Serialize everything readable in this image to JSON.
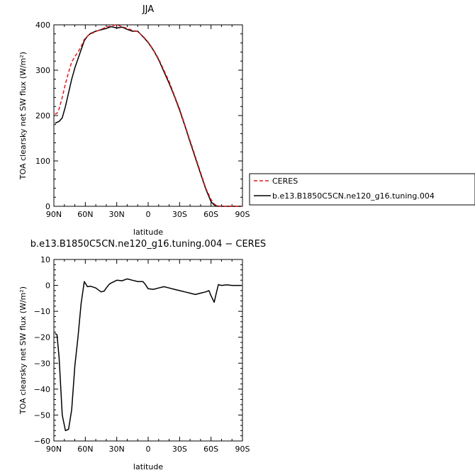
{
  "chart_data": [
    {
      "type": "line",
      "title": "JJA",
      "xlabel": "latitude",
      "ylabel": "TOA clearsky net SW flux (W/m²)",
      "xlim": [
        90,
        -90
      ],
      "ylim": [
        0,
        400
      ],
      "x_ticks": [
        90,
        60,
        30,
        0,
        -30,
        -60,
        -90
      ],
      "x_tick_labels": [
        "90N",
        "60N",
        "30N",
        "0",
        "30S",
        "60S",
        "90S"
      ],
      "y_ticks": [
        0,
        100,
        200,
        300,
        400
      ],
      "y_tick_labels": [
        "0",
        "100",
        "200",
        "300",
        "400"
      ],
      "legend_position": "right",
      "series": [
        {
          "name": "CERES",
          "color": "#e0191b",
          "dash": "dashed",
          "x": [
            89,
            87,
            85,
            82,
            79,
            76,
            73,
            70,
            67,
            64,
            61,
            58,
            55,
            50,
            45,
            40,
            35,
            30,
            25,
            20,
            15,
            10,
            5,
            0,
            -5,
            -10,
            -15,
            -20,
            -25,
            -30,
            -35,
            -40,
            -45,
            -50,
            -55,
            -60,
            -63,
            -65,
            -67,
            -70,
            -75,
            -80,
            -85,
            -89
          ],
          "values": [
            203,
            205,
            215,
            240,
            270,
            295,
            318,
            330,
            340,
            352,
            368,
            375,
            380,
            385,
            390,
            395,
            398,
            400,
            396,
            392,
            388,
            385,
            375,
            362,
            345,
            325,
            300,
            275,
            245,
            215,
            180,
            145,
            110,
            75,
            40,
            15,
            5,
            2,
            1,
            0,
            0,
            0,
            0,
            0
          ]
        },
        {
          "name": "b.e13.B1850C5CN.ne120_g16.tuning.004",
          "color": "#000000",
          "dash": "solid",
          "x": [
            89,
            87,
            85,
            82,
            79,
            76,
            73,
            70,
            67,
            64,
            61,
            58,
            55,
            50,
            45,
            40,
            35,
            30,
            25,
            20,
            15,
            10,
            5,
            0,
            -5,
            -10,
            -15,
            -20,
            -25,
            -30,
            -35,
            -40,
            -45,
            -50,
            -55,
            -60,
            -63,
            -65,
            -67,
            -70,
            -75,
            -80,
            -85,
            -89
          ],
          "values": [
            183,
            185,
            187,
            195,
            220,
            250,
            280,
            305,
            325,
            345,
            365,
            375,
            381,
            386,
            389,
            392,
            396,
            393,
            395,
            390,
            386,
            386,
            374,
            361,
            344,
            323,
            297,
            271,
            243,
            212,
            178,
            142,
            107,
            72,
            38,
            10,
            3,
            1,
            0,
            0,
            0,
            0,
            0,
            0
          ]
        }
      ]
    },
    {
      "type": "line",
      "title": "b.e13.B1850C5CN.ne120_g16.tuning.004 − CERES",
      "xlabel": "latitude",
      "ylabel": "TOA clearsky net SW flux (W/m²)",
      "xlim": [
        90,
        -90
      ],
      "ylim": [
        -60,
        10
      ],
      "x_ticks": [
        90,
        60,
        30,
        0,
        -30,
        -60,
        -90
      ],
      "x_tick_labels": [
        "90N",
        "60N",
        "30N",
        "0",
        "30S",
        "60S",
        "90S"
      ],
      "y_ticks": [
        -60,
        -50,
        -40,
        -30,
        -20,
        -10,
        0,
        10
      ],
      "y_tick_labels": [
        "−60",
        "−50",
        "−40",
        "−30",
        "−20",
        "−10",
        "0",
        "10"
      ],
      "series": [
        {
          "name": "",
          "color": "#000000",
          "dash": "solid",
          "x": [
            89,
            87,
            85,
            82,
            79,
            76,
            73,
            70,
            67,
            64,
            61,
            58,
            55,
            50,
            45,
            42,
            40,
            37,
            35,
            30,
            25,
            20,
            15,
            10,
            5,
            3,
            0,
            -5,
            -10,
            -15,
            -20,
            -25,
            -30,
            -35,
            -40,
            -45,
            -50,
            -55,
            -58,
            -60,
            -63,
            -65,
            -67,
            -70,
            -75,
            -80,
            -85,
            -89
          ],
          "values": [
            -18.5,
            -19,
            -28,
            -50,
            -56,
            -55.5,
            -48,
            -31,
            -20,
            -7,
            1.5,
            -0.5,
            -0.3,
            -1,
            -2.5,
            -2.2,
            -1,
            0.5,
            1,
            2,
            1.8,
            2.5,
            2,
            1.5,
            1.5,
            0.5,
            -1.3,
            -1.5,
            -1,
            -0.5,
            -1,
            -1.5,
            -2,
            -2.5,
            -3,
            -3.5,
            -3,
            -2.5,
            -2,
            -4,
            -6.5,
            -3,
            0.3,
            0,
            0.2,
            0,
            0,
            0
          ]
        }
      ]
    }
  ]
}
